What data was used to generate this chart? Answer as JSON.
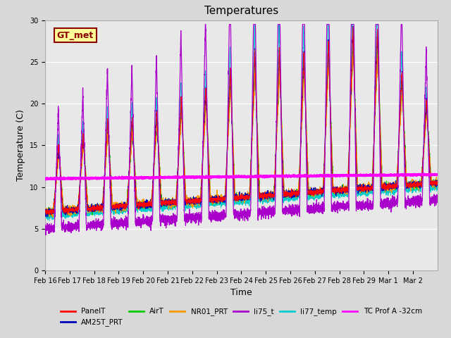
{
  "title": "Temperatures",
  "xlabel": "Time",
  "ylabel": "Temperature (C)",
  "ylim": [
    0,
    30
  ],
  "background_color": "#e8e8e8",
  "gt_met_label": "GT_met",
  "gt_met_box_color": "#ffff99",
  "gt_met_border_color": "#8B0000",
  "gt_met_text_color": "#8B0000",
  "legend_entries": [
    "PanelT",
    "AM25T_PRT",
    "AirT",
    "NR01_PRT",
    "li75_t",
    "li77_temp",
    "TC Prof A -32cm"
  ],
  "legend_colors": [
    "#ff0000",
    "#0000bb",
    "#00cc00",
    "#ff9900",
    "#aa00cc",
    "#00cccc",
    "#ff00ff"
  ],
  "x_tick_labels": [
    "Feb 16",
    "Feb 17",
    "Feb 18",
    "Feb 19",
    "Feb 20",
    "Feb 21",
    "Feb 22",
    "Feb 23",
    "Feb 24",
    "Feb 25",
    "Feb 26",
    "Feb 27",
    "Feb 28",
    "Feb 29",
    "Mar 1",
    "Mar 2"
  ],
  "n_days": 16,
  "pts_per_day": 288,
  "seed": 42,
  "tc_prof_value": 11.0
}
